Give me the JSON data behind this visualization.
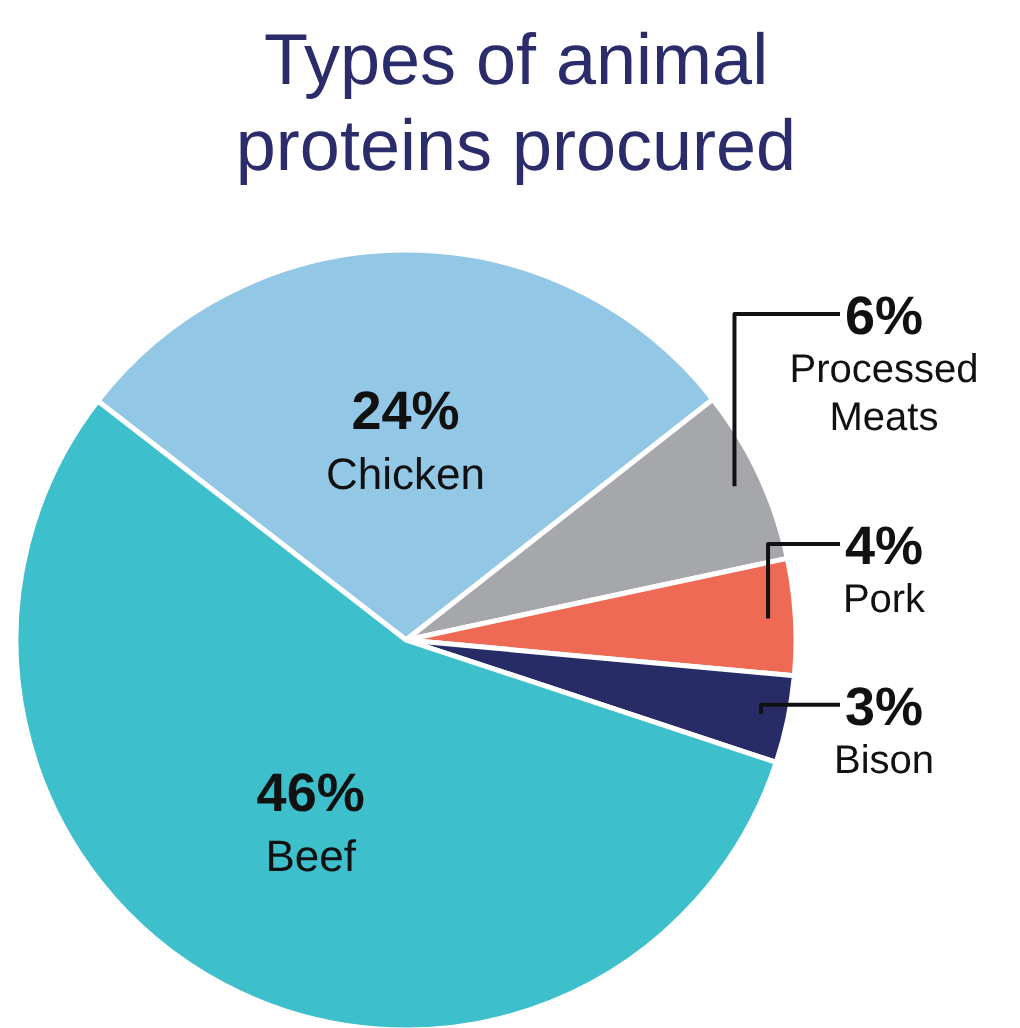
{
  "chart_data": {
    "type": "pie",
    "title": "Types of animal proteins procured",
    "categories": [
      "Chicken",
      "Processed Meats",
      "Pork",
      "Bison",
      "Beef"
    ],
    "values": [
      24,
      6,
      4,
      3,
      46
    ],
    "value_labels": [
      "24%",
      "6%",
      "4%",
      "3%",
      "46%"
    ],
    "colors": [
      "#93c7e6",
      "#a6a7aa",
      "#ee6a54",
      "#282c66",
      "#3dbfcc"
    ]
  }
}
